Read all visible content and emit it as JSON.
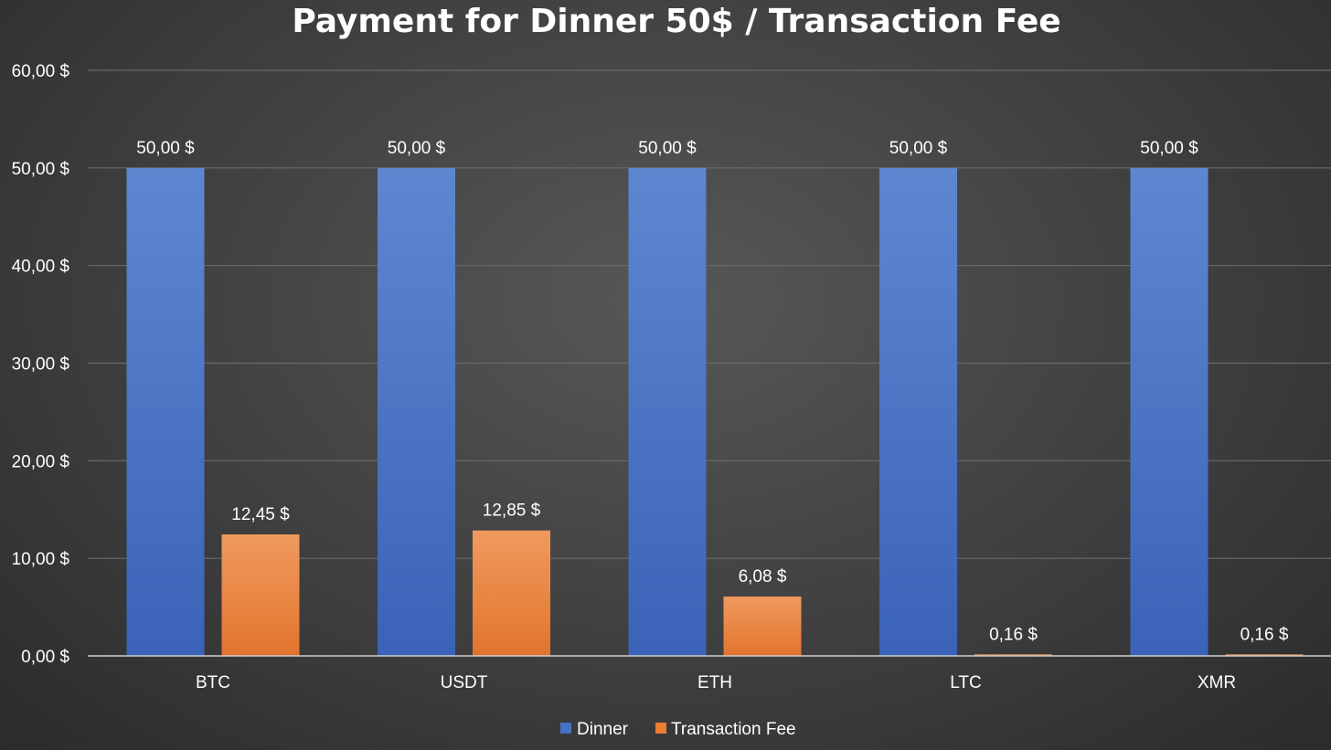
{
  "chart_data": {
    "type": "bar",
    "title": "Payment for Dinner 50$ / Transaction Fee",
    "categories": [
      "BTC",
      "USDT",
      "ETH",
      "LTC",
      "XMR"
    ],
    "series": [
      {
        "name": "Dinner",
        "values": [
          50,
          50,
          50,
          50,
          50
        ],
        "labels": [
          "50,00 $",
          "50,00 $",
          "50,00 $",
          "50,00 $",
          "50,00 $"
        ],
        "color": "#4472c4"
      },
      {
        "name": "Transaction Fee",
        "values": [
          12.45,
          12.85,
          6.08,
          0.16,
          0.16
        ],
        "labels": [
          "12,45 $",
          "12,85 $",
          "6,08 $",
          "0,16 $",
          "0,16 $"
        ],
        "color": "#ed7d31"
      }
    ],
    "yticks": [
      "0,00 $",
      "10,00 $",
      "20,00 $",
      "30,00 $",
      "40,00 $",
      "50,00 $",
      "60,00 $"
    ],
    "ytick_values": [
      0,
      10,
      20,
      30,
      40,
      50,
      60
    ],
    "ylim": [
      0,
      60
    ],
    "grid": true,
    "legend": "bottom-center"
  }
}
